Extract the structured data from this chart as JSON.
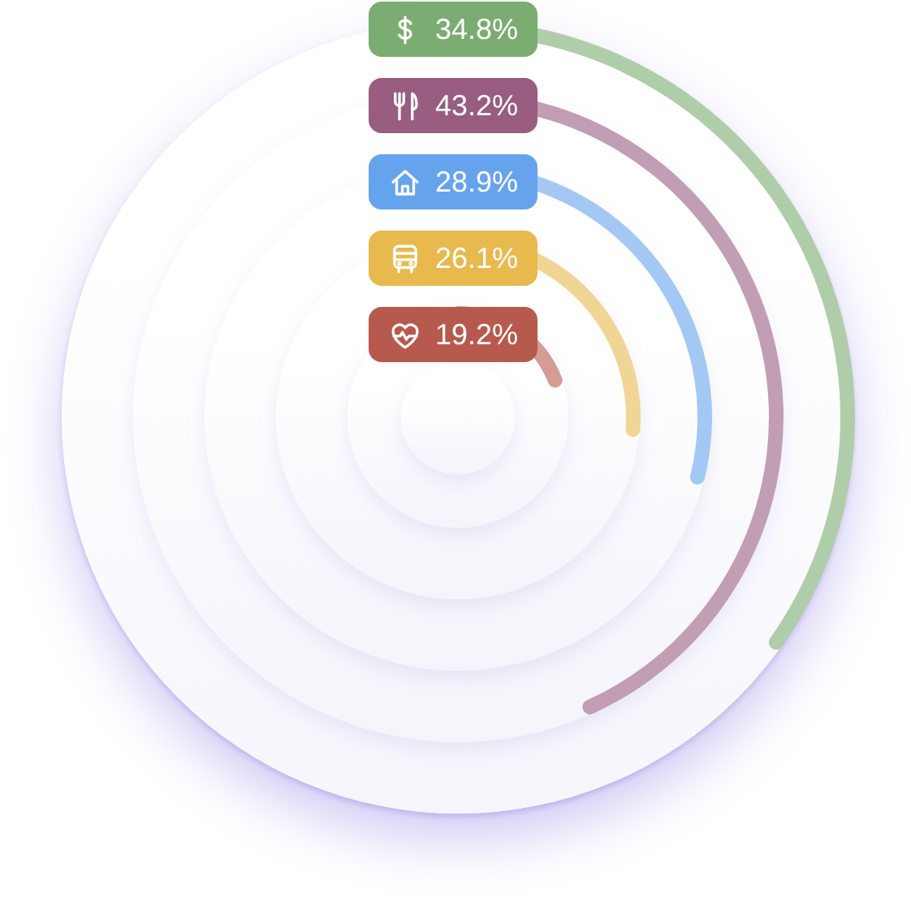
{
  "chart_data": {
    "type": "other",
    "categories": [
      null,
      null,
      null,
      null,
      null
    ],
    "values": [
      34.8,
      43.2,
      28.9,
      26.1,
      19.2
    ],
    "colors": [
      "#b0cdaa",
      "#c19eb3",
      "#a3c8f4",
      "#f1d594",
      "#d49c94"
    ],
    "value_labels": [
      "34.8%",
      "43.2%",
      "28.9%",
      "26.1%",
      "19.2%"
    ]
  }
}
